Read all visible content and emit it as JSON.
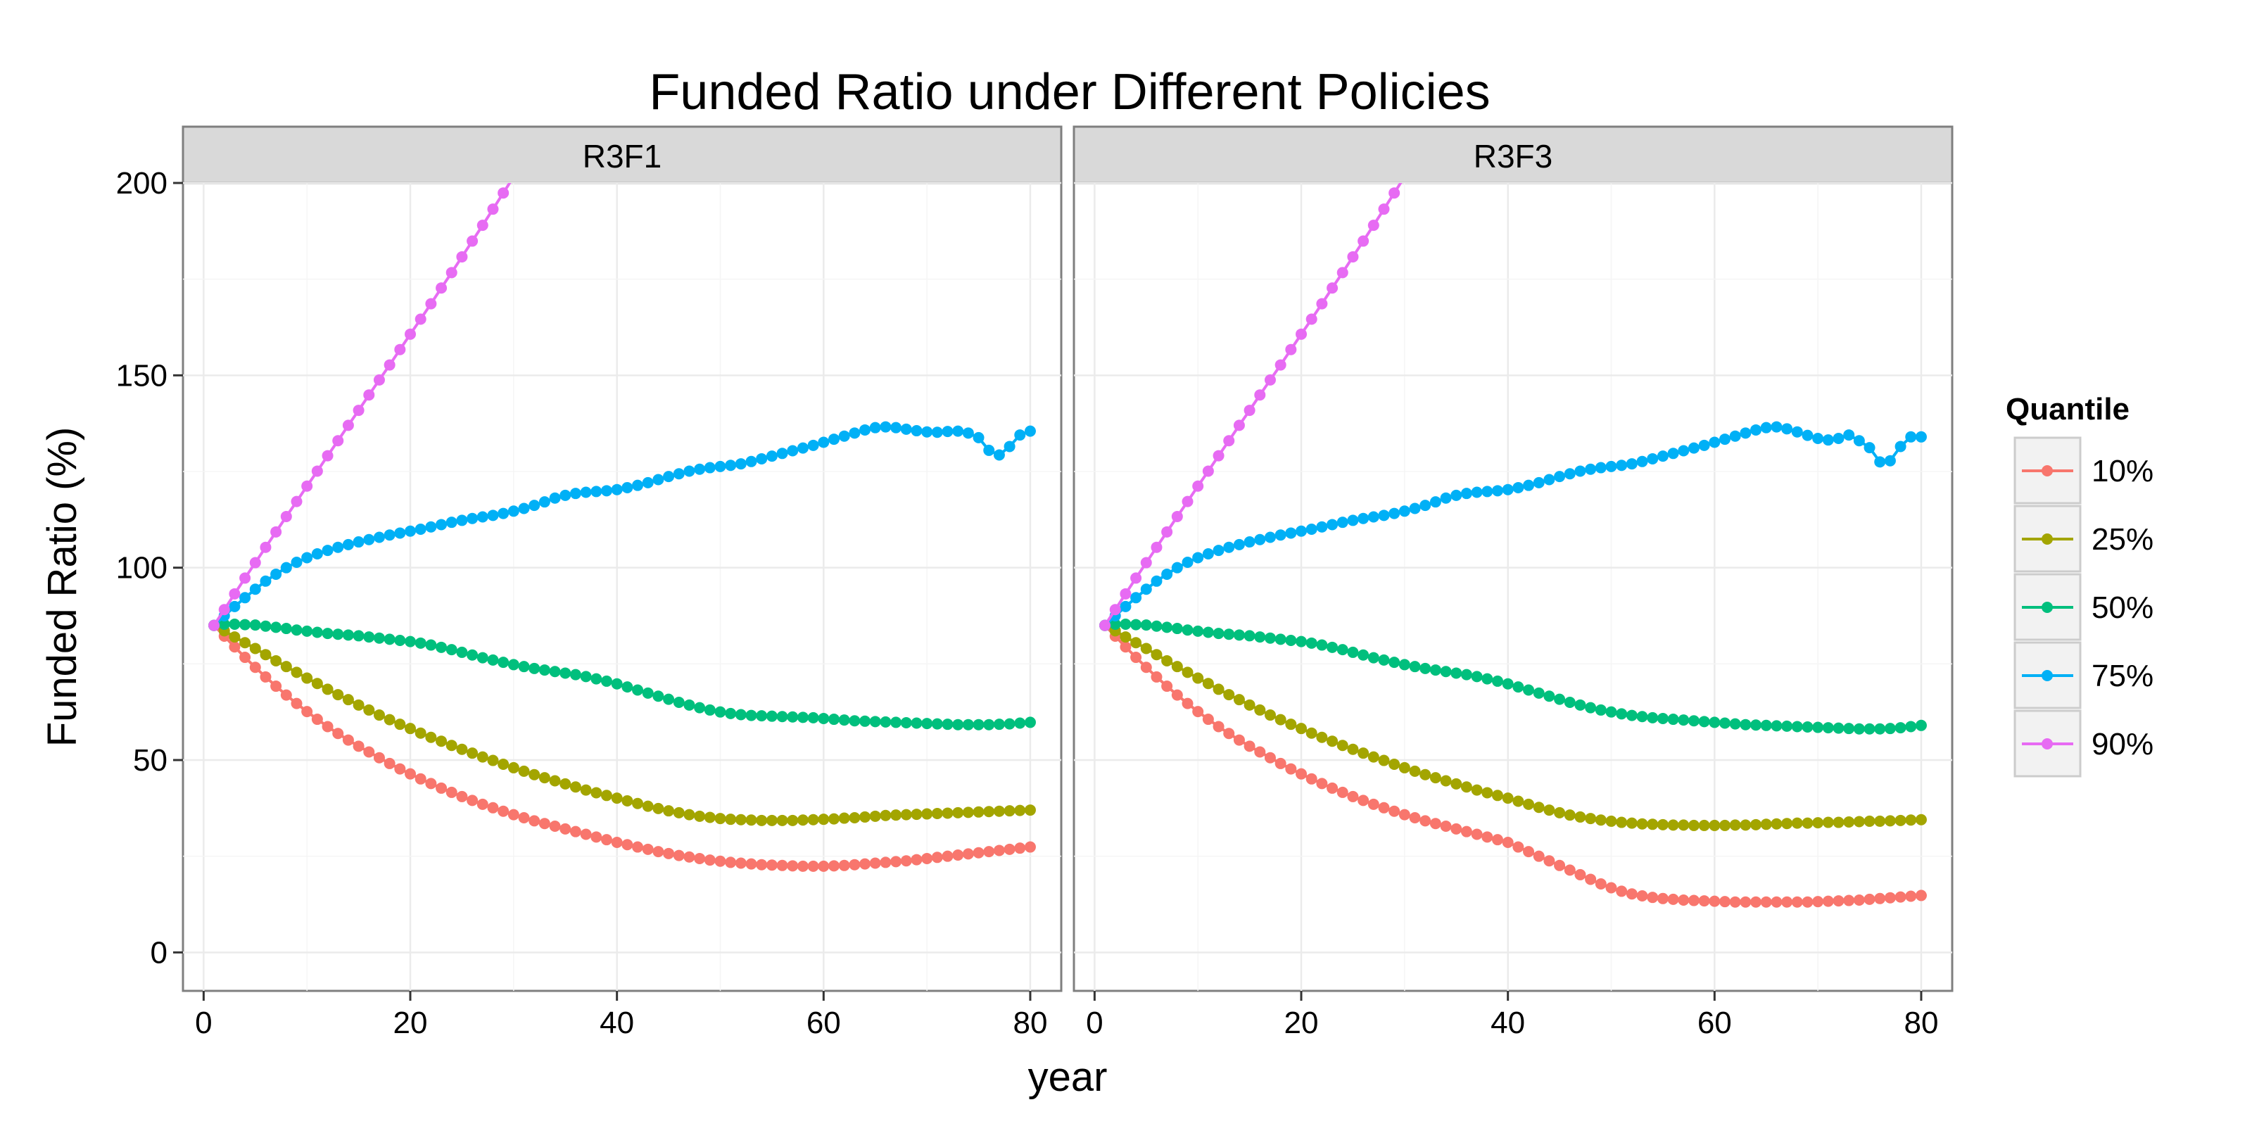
{
  "chart_data": {
    "type": "line",
    "title": "Funded Ratio under Different Policies",
    "xlabel": "year",
    "ylabel": "Funded Ratio (%)",
    "xlim": [
      -2,
      83
    ],
    "ylim": [
      -10,
      200
    ],
    "x_ticks": [
      0,
      20,
      40,
      60,
      80
    ],
    "y_ticks": [
      0,
      50,
      100,
      150,
      200
    ],
    "grid": true,
    "legend": {
      "title": "Quantile",
      "position": "right",
      "items": [
        "10%",
        "25%",
        "50%",
        "75%",
        "90%"
      ]
    },
    "x": [
      1,
      2,
      3,
      4,
      5,
      6,
      7,
      8,
      9,
      10,
      11,
      12,
      13,
      14,
      15,
      16,
      17,
      18,
      19,
      20,
      21,
      22,
      23,
      24,
      25,
      26,
      27,
      28,
      29,
      30,
      31,
      32,
      33,
      34,
      35,
      36,
      37,
      38,
      39,
      40,
      41,
      42,
      43,
      44,
      45,
      46,
      47,
      48,
      49,
      50,
      51,
      52,
      53,
      54,
      55,
      56,
      57,
      58,
      59,
      60,
      61,
      62,
      63,
      64,
      65,
      66,
      67,
      68,
      69,
      70,
      71,
      72,
      73,
      74,
      75,
      76,
      77,
      78,
      79,
      80
    ],
    "series_colors": {
      "10%": "#F8766D",
      "25%": "#A3A500",
      "50%": "#00BF7D",
      "75%": "#00B0F6",
      "90%": "#E76BF3"
    },
    "panels": [
      {
        "strip": "R3F1",
        "series": [
          {
            "name": "10%",
            "values": [
              85,
              82.2,
              79.4,
              76.7,
              74.1,
              71.6,
              69.2,
              66.9,
              64.7,
              62.6,
              60.6,
              58.7,
              56.9,
              55.2,
              53.6,
              52.1,
              50.6,
              49.1,
              47.7,
              46.4,
              45.1,
              43.9,
              42.7,
              41.6,
              40.5,
              39.5,
              38.5,
              37.6,
              36.7,
              35.8,
              35,
              34.2,
              33.5,
              32.8,
              32.1,
              31.4,
              30.7,
              30,
              29.3,
              28.6,
              28,
              27.4,
              26.8,
              26.2,
              25.7,
              25.2,
              24.8,
              24.4,
              24,
              23.7,
              23.4,
              23.2,
              23,
              22.8,
              22.7,
              22.6,
              22.5,
              22.4,
              22.4,
              22.4,
              22.5,
              22.6,
              22.8,
              23,
              23.2,
              23.4,
              23.6,
              23.8,
              24.1,
              24.4,
              24.7,
              25,
              25.3,
              25.6,
              25.9,
              26.2,
              26.5,
              26.8,
              27.1,
              27.4
            ]
          },
          {
            "name": "25%",
            "values": [
              85,
              83.6,
              82,
              80.5,
              79,
              77.4,
              75.8,
              74.3,
              72.8,
              71.3,
              69.9,
              68.4,
              67,
              65.7,
              64.3,
              63,
              61.7,
              60.5,
              59.3,
              58.2,
              57,
              55.9,
              54.9,
              53.8,
              52.8,
              51.8,
              50.8,
              49.9,
              48.9,
              48,
              47.1,
              46.2,
              45.4,
              44.6,
              43.8,
              43,
              42.2,
              41.5,
              40.8,
              40.1,
              39.4,
              38.7,
              38,
              37.4,
              36.8,
              36.3,
              35.8,
              35.4,
              35.1,
              34.8,
              34.6,
              34.5,
              34.4,
              34.3,
              34.3,
              34.3,
              34.3,
              34.4,
              34.5,
              34.6,
              34.7,
              34.9,
              35,
              35.2,
              35.4,
              35.6,
              35.7,
              35.8,
              35.9,
              36,
              36.1,
              36.2,
              36.3,
              36.4,
              36.5,
              36.6,
              36.7,
              36.8,
              36.9,
              37
            ]
          },
          {
            "name": "50%",
            "values": [
              85,
              85.3,
              85.3,
              85.2,
              85.1,
              84.8,
              84.5,
              84.2,
              83.8,
              83.5,
              83.2,
              82.9,
              82.7,
              82.5,
              82.3,
              82,
              81.7,
              81.4,
              81.1,
              80.8,
              80.4,
              79.9,
              79.3,
              78.7,
              78,
              77.3,
              76.6,
              76,
              75.4,
              74.8,
              74.3,
              73.8,
              73.4,
              73,
              72.6,
              72.2,
              71.7,
              71.1,
              70.5,
              69.8,
              69,
              68.2,
              67.4,
              66.6,
              65.8,
              65,
              64.3,
              63.6,
              63,
              62.5,
              62.1,
              61.8,
              61.6,
              61.5,
              61.4,
              61.3,
              61.2,
              61.1,
              61,
              60.8,
              60.6,
              60.4,
              60.2,
              60.1,
              60,
              59.9,
              59.8,
              59.7,
              59.6,
              59.5,
              59.4,
              59.3,
              59.2,
              59.2,
              59.2,
              59.2,
              59.3,
              59.4,
              59.6,
              59.8
            ]
          },
          {
            "name": "75%",
            "values": [
              85,
              87.5,
              89.9,
              92.2,
              94.4,
              96.5,
              98.3,
              100,
              101.4,
              102.6,
              103.6,
              104.5,
              105.3,
              106,
              106.7,
              107.3,
              107.9,
              108.5,
              109,
              109.5,
              110,
              110.6,
              111.2,
              111.8,
              112.3,
              112.8,
              113.2,
              113.6,
              114.1,
              114.7,
              115.4,
              116.2,
              117.1,
              118.1,
              118.8,
              119.3,
              119.6,
              119.8,
              120,
              120.3,
              120.8,
              121.4,
              122.1,
              122.9,
              123.7,
              124.4,
              125.1,
              125.6,
              126,
              126.3,
              126.6,
              127,
              127.6,
              128.3,
              129,
              129.7,
              130.4,
              131.1,
              131.8,
              132.6,
              133.4,
              134.2,
              135,
              135.8,
              136.4,
              136.6,
              136.4,
              136,
              135.6,
              135.3,
              135.2,
              135.4,
              135.5,
              135,
              133.8,
              130.5,
              129.3,
              131.5,
              134.5,
              135.5
            ]
          },
          {
            "name": "90%",
            "values": [
              85,
              89.1,
              93.2,
              97.3,
              101.3,
              105.3,
              109.3,
              113.3,
              117.2,
              121.2,
              125.1,
              129.1,
              133,
              137,
              140.9,
              144.9,
              148.8,
              152.7,
              156.7,
              160.7,
              164.6,
              168.6,
              172.7,
              176.7,
              180.8,
              184.9,
              189,
              193.2,
              197.4,
              201.6
            ]
          }
        ]
      },
      {
        "strip": "R3F3",
        "series": [
          {
            "name": "10%",
            "values": [
              85,
              82.2,
              79.4,
              76.7,
              74.1,
              71.6,
              69.2,
              66.9,
              64.7,
              62.6,
              60.6,
              58.7,
              56.9,
              55.2,
              53.6,
              52.1,
              50.6,
              49.1,
              47.7,
              46.4,
              45.1,
              43.9,
              42.7,
              41.6,
              40.5,
              39.5,
              38.5,
              37.6,
              36.7,
              35.8,
              35,
              34.2,
              33.5,
              32.8,
              32.1,
              31.4,
              30.7,
              30,
              29.3,
              28.6,
              27.4,
              26.2,
              25,
              23.8,
              22.6,
              21.4,
              20.2,
              19,
              17.8,
              16.8,
              15.9,
              15.2,
              14.7,
              14.3,
              14,
              13.8,
              13.6,
              13.5,
              13.4,
              13.3,
              13.2,
              13.1,
              13.1,
              13.1,
              13.1,
              13.1,
              13.1,
              13.1,
              13.1,
              13.2,
              13.3,
              13.4,
              13.5,
              13.6,
              13.8,
              14,
              14.2,
              14.4,
              14.6,
              14.8
            ]
          },
          {
            "name": "25%",
            "values": [
              85,
              83.6,
              82,
              80.5,
              79,
              77.4,
              75.8,
              74.3,
              72.8,
              71.3,
              69.9,
              68.4,
              67,
              65.7,
              64.3,
              63,
              61.7,
              60.5,
              59.3,
              58.2,
              57,
              55.9,
              54.9,
              53.8,
              52.8,
              51.8,
              50.8,
              49.9,
              48.9,
              48,
              47.1,
              46.2,
              45.4,
              44.6,
              43.8,
              43,
              42.2,
              41.5,
              40.8,
              40.1,
              39.3,
              38.5,
              37.7,
              37,
              36.3,
              35.7,
              35.2,
              34.8,
              34.4,
              34.1,
              33.8,
              33.6,
              33.4,
              33.3,
              33.2,
              33.1,
              33.1,
              33,
              33,
              33,
              33,
              33.1,
              33.1,
              33.2,
              33.3,
              33.4,
              33.5,
              33.6,
              33.6,
              33.7,
              33.8,
              33.8,
              33.9,
              34,
              34.1,
              34.1,
              34.2,
              34.3,
              34.4,
              34.5
            ]
          },
          {
            "name": "50%",
            "values": [
              85,
              85.3,
              85.3,
              85.2,
              85.1,
              84.8,
              84.5,
              84.2,
              83.8,
              83.5,
              83.2,
              82.9,
              82.7,
              82.5,
              82.3,
              82,
              81.7,
              81.4,
              81.1,
              80.8,
              80.4,
              79.9,
              79.3,
              78.7,
              78,
              77.3,
              76.6,
              76,
              75.4,
              74.8,
              74.3,
              73.8,
              73.4,
              73,
              72.6,
              72.2,
              71.7,
              71.1,
              70.5,
              69.8,
              69,
              68.2,
              67.4,
              66.6,
              65.8,
              65,
              64.3,
              63.6,
              63,
              62.5,
              62,
              61.6,
              61.3,
              61,
              60.8,
              60.6,
              60.4,
              60.2,
              60,
              59.8,
              59.6,
              59.4,
              59.2,
              59.1,
              59,
              58.9,
              58.8,
              58.7,
              58.6,
              58.5,
              58.4,
              58.3,
              58.2,
              58.1,
              58.1,
              58.1,
              58.2,
              58.4,
              58.7,
              59
            ]
          },
          {
            "name": "75%",
            "values": [
              85,
              87.5,
              89.9,
              92.2,
              94.4,
              96.5,
              98.3,
              100,
              101.4,
              102.6,
              103.6,
              104.5,
              105.3,
              106,
              106.7,
              107.3,
              107.9,
              108.5,
              109,
              109.5,
              110,
              110.6,
              111.2,
              111.8,
              112.3,
              112.8,
              113.2,
              113.6,
              114.1,
              114.7,
              115.4,
              116.2,
              117.1,
              118.1,
              118.8,
              119.3,
              119.6,
              119.8,
              120,
              120.3,
              120.8,
              121.4,
              122.1,
              122.9,
              123.7,
              124.4,
              125.1,
              125.6,
              126,
              126.3,
              126.6,
              127,
              127.6,
              128.3,
              129,
              129.7,
              130.4,
              131.1,
              131.8,
              132.6,
              133.4,
              134.2,
              135,
              135.8,
              136.4,
              136.6,
              136.1,
              135.3,
              134.4,
              133.6,
              133.2,
              133.6,
              134.5,
              133,
              131.2,
              127.5,
              127.8,
              131.5,
              134,
              134
            ]
          },
          {
            "name": "90%",
            "values": [
              85,
              89.1,
              93.2,
              97.3,
              101.3,
              105.3,
              109.3,
              113.3,
              117.2,
              121.2,
              125.1,
              129.1,
              133,
              137,
              140.9,
              144.9,
              148.8,
              152.7,
              156.7,
              160.7,
              164.6,
              168.6,
              172.7,
              176.7,
              180.8,
              184.9,
              189,
              193.2,
              197.4,
              201.6
            ]
          }
        ]
      }
    ]
  }
}
